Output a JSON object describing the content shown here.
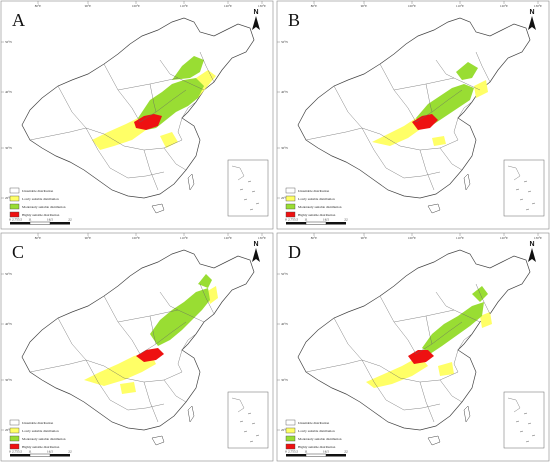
{
  "figure": {
    "panels": [
      {
        "label": "A"
      },
      {
        "label": "B"
      },
      {
        "label": "C"
      },
      {
        "label": "D"
      }
    ],
    "legend": {
      "items": [
        {
          "text": "Unsuitable distribution",
          "color": "#ffffff"
        },
        {
          "text": "Lowly suitable distribution",
          "color": "#ffff66"
        },
        {
          "text": "Moderately suitable distribution",
          "color": "#99dd33"
        },
        {
          "text": "Highly suitable distribution",
          "color": "#ee1111"
        }
      ]
    },
    "north_label": "N",
    "scale": {
      "labels": [
        "0",
        "2.75",
        "5.5",
        "11",
        "16.5",
        "22"
      ]
    },
    "top_ticks": [
      "80°E",
      "90°E",
      "100°E",
      "110°E",
      "120°E",
      "130°E"
    ],
    "left_ticks": [
      "50°N",
      "40°N",
      "30°N",
      "20°N"
    ],
    "colors": {
      "border": "#555555",
      "background": "#ffffff"
    }
  }
}
